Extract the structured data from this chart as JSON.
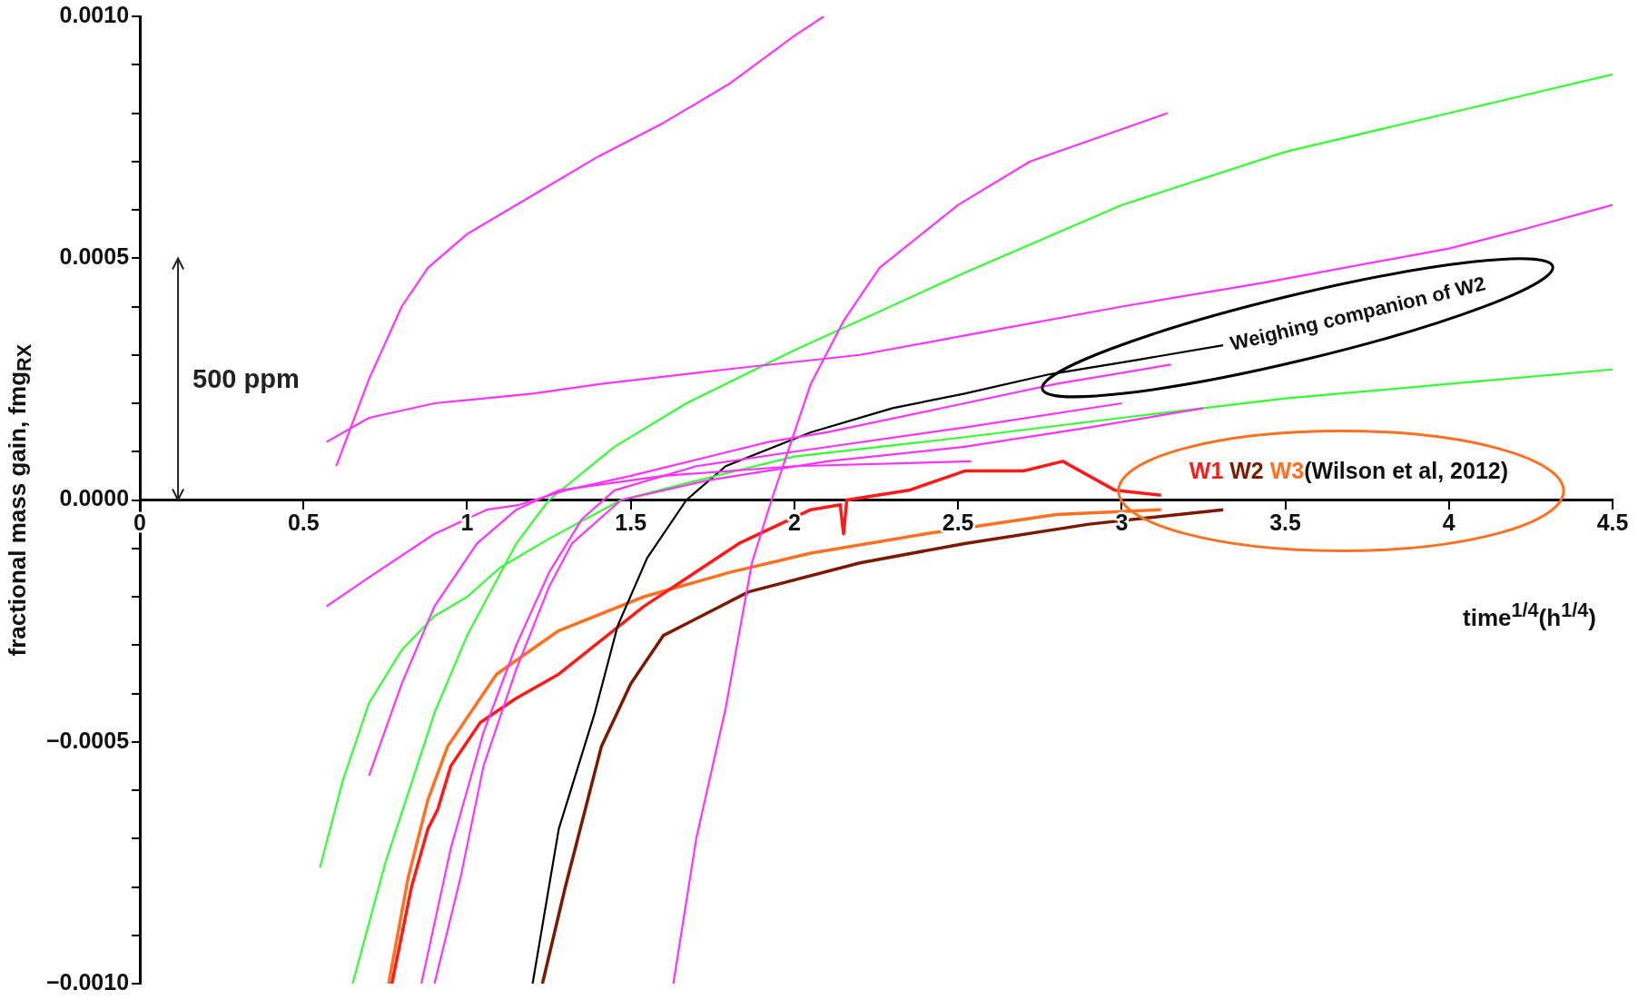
{
  "chart_data": {
    "type": "line",
    "xlabel": "time$^{1/4}$(h$^{1/4}$)",
    "ylabel": "fractional mass gain, fmg$_{RX}$",
    "xlim": [
      0,
      4.5
    ],
    "xticks": [
      0,
      0.5,
      1,
      1.5,
      2,
      2.5,
      3,
      3.5,
      4,
      4.5
    ],
    "ylim": [
      -0.001,
      0.001
    ],
    "yticks": [
      {
        "value": -0.001,
        "label": "−0.0010"
      },
      {
        "value": -0.0009,
        "label": null
      },
      {
        "value": -0.0008,
        "label": null
      },
      {
        "value": -0.0007,
        "label": null
      },
      {
        "value": -0.0006,
        "label": null
      },
      {
        "value": -0.0005,
        "label": "−0.0005"
      },
      {
        "value": -0.0004,
        "label": null
      },
      {
        "value": -0.0003,
        "label": null
      },
      {
        "value": -0.0002,
        "label": null
      },
      {
        "value": -0.0001,
        "label": null
      },
      {
        "value": 0,
        "label": "0.0000"
      },
      {
        "value": 0.0001,
        "label": null
      },
      {
        "value": 0.0002,
        "label": null
      },
      {
        "value": 0.0003,
        "label": null
      },
      {
        "value": 0.0004,
        "label": null
      },
      {
        "value": 0.0005,
        "label": "0.0005"
      },
      {
        "value": 0.0006,
        "label": null
      },
      {
        "value": 0.0007,
        "label": null
      },
      {
        "value": 0.0008,
        "label": null
      },
      {
        "value": 0.0009,
        "label": null
      },
      {
        "value": 0.001,
        "label": "0.0010"
      }
    ],
    "legend": "right",
    "annotations": [
      "500 ppm",
      {
        "text": "Weighing companion of W2",
        "x": 3.31,
        "y": 0.00032
      },
      "(Wilson et al, 2012)"
    ],
    "series": [
      {
        "color": "#ff33ff",
        "x": [
          0.6,
          0.7,
          0.8,
          0.88,
          1.0,
          1.2,
          1.4,
          1.6,
          1.8,
          2.0,
          2.09
        ],
        "values": [
          7e-05,
          0.00025,
          0.0004,
          0.00048,
          0.00055,
          0.00063,
          0.00071,
          0.00078,
          0.00086,
          0.00096,
          0.001
        ]
      },
      {
        "color": "#ff33ff",
        "x": [
          0.57,
          0.7,
          0.9,
          1.2,
          1.41,
          1.79,
          2.2,
          2.52,
          3.0,
          3.44,
          4.0,
          4.23,
          4.5
        ],
        "values": [
          0.00012,
          0.00017,
          0.0002,
          0.00022,
          0.00024,
          0.00027,
          0.0003,
          0.00034,
          0.0004,
          0.00045,
          0.00052,
          0.00056,
          0.00061
        ]
      },
      {
        "color": "#ff33ff",
        "x": [
          0.57,
          0.7,
          0.9,
          1.06,
          1.16,
          1.3,
          1.5,
          1.8,
          1.92,
          2.1,
          2.52,
          2.8,
          3.15
        ],
        "values": [
          -0.00022,
          -0.00016,
          -7e-05,
          -2e-05,
          -1e-05,
          2e-05,
          5e-05,
          0.0001,
          0.00012,
          0.00014,
          0.0002,
          0.00024,
          0.00028
        ]
      },
      {
        "color": "#ff33ff",
        "x": [
          0.7,
          0.8,
          0.9,
          1.03,
          1.15,
          1.28,
          1.6,
          2.0,
          2.54
        ],
        "values": [
          -0.00057,
          -0.00038,
          -0.00022,
          -9e-05,
          -2e-05,
          2e-05,
          5e-05,
          7e-05,
          8e-05
        ]
      },
      {
        "color": "#ff33ff",
        "x": [
          0.9,
          0.98,
          1.05,
          1.15,
          1.25,
          1.32,
          1.47,
          1.73,
          2.1,
          2.52,
          2.9,
          3.25
        ],
        "values": [
          -0.001,
          -0.00078,
          -0.00055,
          -0.00035,
          -0.00018,
          -9e-05,
          0,
          4e-05,
          8e-05,
          0.00011,
          0.00015,
          0.00019
        ]
      },
      {
        "color": "#ff33ff",
        "x": [
          0.86,
          0.95,
          1.05,
          1.15,
          1.25,
          1.35,
          1.45,
          1.7,
          2.0,
          2.52,
          3.0
        ],
        "values": [
          -0.001,
          -0.00072,
          -0.00048,
          -0.0003,
          -0.00015,
          -4e-05,
          2e-05,
          7e-05,
          0.0001,
          0.00015,
          0.0002
        ]
      },
      {
        "color": "#ff33ff",
        "x": [
          1.63,
          1.7,
          1.79,
          1.87,
          1.93,
          2.05,
          2.15,
          2.26,
          2.5,
          2.72,
          3.14
        ],
        "values": [
          -0.001,
          -0.0007,
          -0.00043,
          -0.00013,
          0,
          0.00024,
          0.00037,
          0.00048,
          0.00061,
          0.0007,
          0.0008
        ]
      },
      {
        "color": "#33ff33",
        "x": [
          0.55,
          0.62,
          0.7,
          0.8,
          0.9,
          1.0,
          1.1,
          1.25,
          1.47,
          1.7,
          2.0,
          2.52,
          3.0,
          3.5,
          4.0,
          4.5
        ],
        "values": [
          -0.00076,
          -0.00058,
          -0.00042,
          -0.00031,
          -0.00024,
          -0.0002,
          -0.00014,
          -8e-05,
          0,
          4e-05,
          9e-05,
          0.00013,
          0.00017,
          0.00021,
          0.00024,
          0.00027
        ]
      },
      {
        "color": "#33ff33",
        "x": [
          0.65,
          0.75,
          0.9,
          1.0,
          1.15,
          1.25,
          1.45,
          1.67,
          2.0,
          2.52,
          3.0,
          3.5,
          4.0,
          4.5
        ],
        "values": [
          -0.001,
          -0.00075,
          -0.00044,
          -0.00028,
          -9e-05,
          0,
          0.00011,
          0.0002,
          0.00031,
          0.00047,
          0.00061,
          0.00072,
          0.0008,
          0.00088
        ]
      },
      {
        "color": "#000000",
        "x": [
          1.2,
          1.28,
          1.39,
          1.46,
          1.55,
          1.67,
          1.79,
          2.05,
          2.3,
          2.52,
          2.78,
          3.05,
          3.31
        ],
        "values": [
          -0.001,
          -0.00068,
          -0.00044,
          -0.00026,
          -0.00012,
          0,
          7e-05,
          0.00014,
          0.00019,
          0.00022,
          0.00026,
          0.00029,
          0.00032
        ]
      },
      {
        "name": "W1",
        "color": "#ff1a1a",
        "x": [
          0.77,
          0.83,
          0.88,
          0.91,
          0.95,
          1.04,
          1.15,
          1.28,
          1.54,
          1.83,
          2.05,
          2.14,
          2.15,
          2.16,
          2.35,
          2.52,
          2.7,
          2.82,
          2.98,
          3.12
        ],
        "values": [
          -0.001,
          -0.0008,
          -0.00068,
          -0.00064,
          -0.00055,
          -0.00046,
          -0.00041,
          -0.00036,
          -0.00022,
          -9e-05,
          -2e-05,
          -1e-05,
          -7e-05,
          0,
          2e-05,
          6e-05,
          6e-05,
          8e-05,
          2e-05,
          1e-05
        ]
      },
      {
        "name": "W2",
        "color": "#7a1a00",
        "x": [
          1.23,
          1.3,
          1.41,
          1.5,
          1.6,
          1.86,
          2.2,
          2.52,
          2.9,
          3.31
        ],
        "values": [
          -0.001,
          -0.0008,
          -0.00051,
          -0.00038,
          -0.00028,
          -0.00019,
          -0.00013,
          -9e-05,
          -5e-05,
          -2e-05
        ]
      },
      {
        "name": "W3",
        "color": "#ff7020",
        "x": [
          0.76,
          0.82,
          0.88,
          0.94,
          1.09,
          1.28,
          1.54,
          1.8,
          2.05,
          2.4,
          2.8,
          3.12
        ],
        "values": [
          -0.001,
          -0.00078,
          -0.00062,
          -0.00051,
          -0.00036,
          -0.00027,
          -0.0002,
          -0.00015,
          -0.00011,
          -7e-05,
          -3e-05,
          -2e-05
        ]
      }
    ]
  }
}
